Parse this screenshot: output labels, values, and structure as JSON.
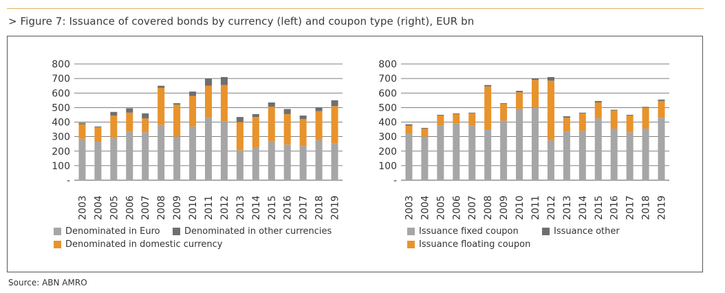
{
  "figure": {
    "title": "> Figure 7: Issuance of covered bonds by currency (left) and coupon type (right), EUR bn",
    "source": "Source: ABN AMRO"
  },
  "colors": {
    "gray": "#a6a6a6",
    "orange": "#e8932c",
    "dark": "#6f6f6f",
    "rule": "#e0b25f"
  },
  "chart_data": [
    {
      "type": "bar",
      "stacked": true,
      "categories": [
        "2003",
        "2004",
        "2005",
        "2006",
        "2007",
        "2008",
        "2009",
        "2010",
        "2011",
        "2012",
        "2013",
        "2014",
        "2015",
        "2016",
        "2017",
        "2018",
        "2019"
      ],
      "ylim": [
        0,
        800
      ],
      "yticks": [
        "-",
        "100",
        "200",
        "300",
        "400",
        "500",
        "600",
        "700",
        "800"
      ],
      "grid": true,
      "legend_placement": "bottom",
      "series": [
        {
          "name": "Denominated in Euro",
          "color": "#a6a6a6",
          "values": [
            285,
            265,
            290,
            335,
            330,
            380,
            300,
            370,
            430,
            405,
            205,
            225,
            270,
            245,
            235,
            275,
            255
          ]
        },
        {
          "name": "Denominated in domestic currency",
          "color": "#e8932c",
          "values": [
            100,
            100,
            155,
            130,
            95,
            255,
            220,
            210,
            220,
            250,
            195,
            210,
            235,
            210,
            185,
            200,
            255
          ]
        },
        {
          "name": "Denominated in other currencies",
          "color": "#6f6f6f",
          "values": [
            10,
            5,
            25,
            30,
            35,
            15,
            10,
            30,
            50,
            55,
            35,
            20,
            30,
            35,
            25,
            25,
            40
          ]
        }
      ],
      "legend": [
        {
          "label": "Denominated in Euro",
          "color": "#a6a6a6"
        },
        {
          "label": "Denominated in other currencies",
          "color": "#6f6f6f"
        },
        {
          "label": "Denominated in domestic currency",
          "color": "#e8932c"
        }
      ]
    },
    {
      "type": "bar",
      "stacked": true,
      "categories": [
        "2003",
        "2004",
        "2005",
        "2006",
        "2007",
        "2008",
        "2009",
        "2010",
        "2011",
        "2012",
        "2013",
        "2014",
        "2015",
        "2016",
        "2017",
        "2018",
        "2019"
      ],
      "ylim": [
        0,
        800
      ],
      "yticks": [
        "-",
        "100",
        "200",
        "300",
        "400",
        "500",
        "600",
        "700",
        "800"
      ],
      "grid": true,
      "legend_placement": "bottom",
      "series": [
        {
          "name": "Issuance fixed coupon",
          "color": "#a6a6a6",
          "values": [
            320,
            300,
            375,
            390,
            375,
            350,
            410,
            490,
            500,
            275,
            335,
            340,
            425,
            355,
            330,
            355,
            430
          ]
        },
        {
          "name": "Issuance floating coupon",
          "color": "#e8932c",
          "values": [
            55,
            55,
            70,
            65,
            85,
            295,
            115,
            115,
            190,
            410,
            95,
            120,
            110,
            125,
            115,
            145,
            115
          ]
        },
        {
          "name": "Issuance other",
          "color": "#6f6f6f",
          "values": [
            10,
            5,
            5,
            5,
            5,
            10,
            5,
            10,
            10,
            25,
            10,
            5,
            10,
            5,
            5,
            5,
            10
          ]
        }
      ],
      "legend": [
        {
          "label": "Issuance fixed coupon",
          "color": "#a6a6a6"
        },
        {
          "label": "Issuance other",
          "color": "#6f6f6f"
        },
        {
          "label": "Issuance floating coupon",
          "color": "#e8932c"
        }
      ]
    }
  ]
}
